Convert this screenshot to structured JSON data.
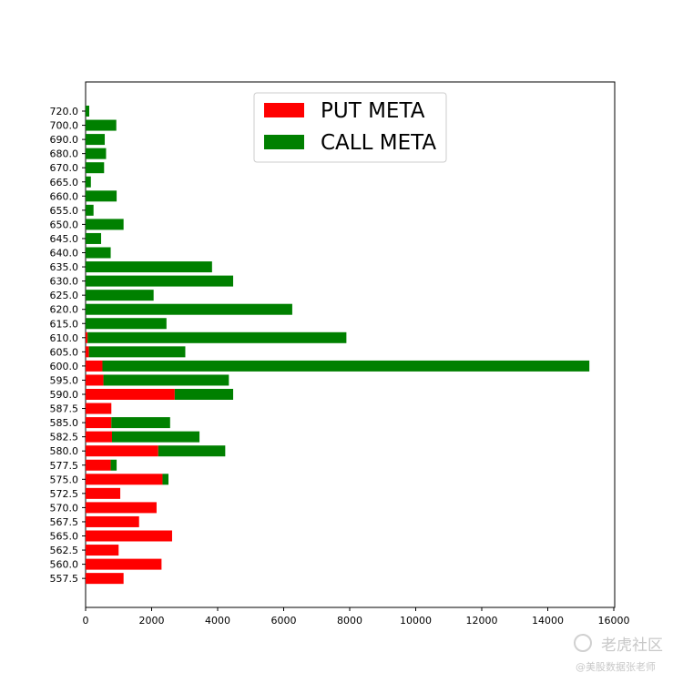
{
  "chart_data": {
    "type": "bar",
    "orientation": "horizontal",
    "stacked": true,
    "categories": [
      "557.5",
      "560.0",
      "562.5",
      "565.0",
      "567.5",
      "570.0",
      "572.5",
      "575.0",
      "577.5",
      "580.0",
      "582.5",
      "585.0",
      "587.5",
      "590.0",
      "595.0",
      "600.0",
      "605.0",
      "610.0",
      "615.0",
      "620.0",
      "625.0",
      "630.0",
      "635.0",
      "640.0",
      "645.0",
      "650.0",
      "655.0",
      "660.0",
      "665.0",
      "670.0",
      "680.0",
      "690.0",
      "700.0",
      "720.0"
    ],
    "series": [
      {
        "name": "PUT META",
        "color": "#ff0000",
        "values": [
          1150,
          2300,
          1000,
          2620,
          1620,
          2150,
          1050,
          2330,
          760,
          2200,
          800,
          780,
          780,
          2700,
          540,
          510,
          100,
          60,
          0,
          0,
          0,
          0,
          0,
          0,
          0,
          0,
          0,
          0,
          0,
          0,
          0,
          0,
          0,
          0
        ]
      },
      {
        "name": "CALL META",
        "color": "#008000",
        "values": [
          0,
          0,
          0,
          0,
          0,
          0,
          0,
          180,
          180,
          2030,
          2650,
          1780,
          0,
          1770,
          3800,
          14750,
          2920,
          7840,
          2450,
          6260,
          2060,
          4470,
          3830,
          760,
          470,
          1150,
          240,
          940,
          160,
          560,
          620,
          580,
          930,
          110
        ]
      }
    ],
    "xlim": [
      0,
      16000
    ],
    "xticks": [
      0,
      2000,
      4000,
      6000,
      8000,
      10000,
      12000,
      14000,
      16000
    ],
    "legend": "top-center",
    "grid": false
  },
  "watermark": {
    "main": "老虎社区",
    "sub": "@美股数据张老师"
  }
}
